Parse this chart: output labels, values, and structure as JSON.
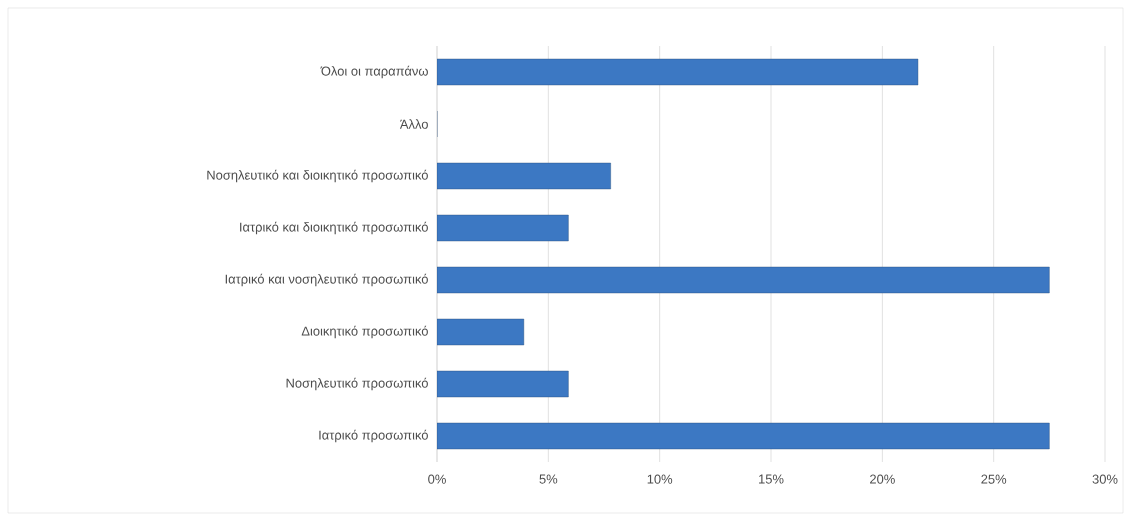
{
  "chart_data": {
    "type": "bar",
    "orientation": "horizontal",
    "categories": [
      "Όλοι οι παραπάνω",
      "Άλλο",
      "Νοσηλευτικό και διοικητικό προσωπικό",
      "Ιατρικό και διοικητικό προσωπικό",
      "Ιατρικό και νοσηλευτικό προσωπικό",
      "Διοικητικό προσωπικό",
      "Νοσηλευτικό προσωπικό",
      "Ιατρικό προσωπικό"
    ],
    "values": [
      21.6,
      0,
      7.8,
      5.9,
      27.5,
      3.9,
      5.9,
      27.5
    ],
    "color": "#3c78c3",
    "xlim": [
      0,
      30
    ],
    "xticks": [
      {
        "value": 0,
        "label": "0%"
      },
      {
        "value": 5,
        "label": "5%"
      },
      {
        "value": 10,
        "label": "10%"
      },
      {
        "value": 15,
        "label": "15%"
      },
      {
        "value": 20,
        "label": "20%"
      },
      {
        "value": 25,
        "label": "25%"
      },
      {
        "value": 30,
        "label": "30%"
      }
    ],
    "grid": "x"
  }
}
